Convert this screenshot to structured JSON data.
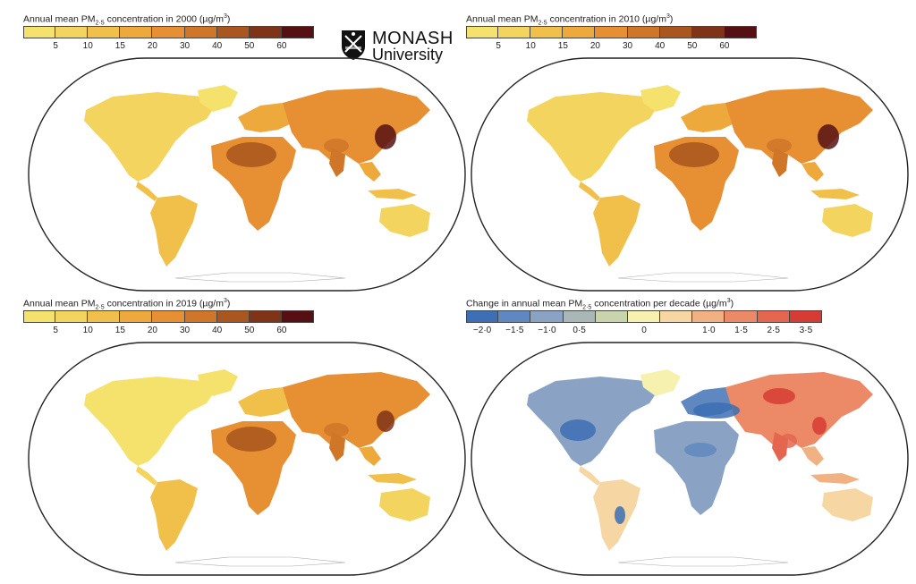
{
  "logo": {
    "name_line1": "MONASH",
    "name_line2": "University"
  },
  "panels": [
    {
      "title_main": "Annual mean PM",
      "title_sub": "2·5",
      "title_rest": " concentration in 2000 (µg/m",
      "title_sup": "3",
      "title_end": ")",
      "year": "2000",
      "legend": [
        "",
        "5",
        "10",
        "15",
        "20",
        "30",
        "40",
        "50",
        "60"
      ],
      "colors": [
        "#f5e26c",
        "#f3d45e",
        "#f1c04b",
        "#eda93c",
        "#e69033",
        "#cf7629",
        "#a9561f",
        "#7f3417",
        "#561014"
      ]
    },
    {
      "title_main": "Annual mean PM",
      "title_sub": "2·5",
      "title_rest": " concentration in 2010 (µg/m",
      "title_sup": "3",
      "title_end": ")",
      "year": "2010",
      "legend": [
        "",
        "5",
        "10",
        "15",
        "20",
        "30",
        "40",
        "50",
        "60"
      ],
      "colors": [
        "#f5e26c",
        "#f3d45e",
        "#f1c04b",
        "#eda93c",
        "#e69033",
        "#cf7629",
        "#a9561f",
        "#7f3417",
        "#561014"
      ]
    },
    {
      "title_main": "Annual mean PM",
      "title_sub": "2·5",
      "title_rest": " concentration in 2019 (µg/m",
      "title_sup": "3",
      "title_end": ")",
      "year": "2019",
      "legend": [
        "",
        "5",
        "10",
        "15",
        "20",
        "30",
        "40",
        "50",
        "60"
      ],
      "colors": [
        "#f5e26c",
        "#f3d45e",
        "#f1c04b",
        "#eda93c",
        "#e69033",
        "#cf7629",
        "#a9561f",
        "#7f3417",
        "#561014"
      ]
    },
    {
      "title_main": "Change in annual mean PM",
      "title_sub": "2·5",
      "title_rest": " concentration per decade (µg/m",
      "title_sup": "3",
      "title_end": ")",
      "year": "",
      "legend": [
        "−2·0",
        "−1·5",
        "−1·0",
        "0·5",
        "",
        "0",
        "",
        "1·0",
        "1·5",
        "2·5",
        "3·5"
      ],
      "colors": [
        "#3c6fb4",
        "#5f88c0",
        "#8aa3c4",
        "#a9b8b6",
        "#c9d4ad",
        "#f7f1b0",
        "#f6d7a3",
        "#f1b283",
        "#ec8a68",
        "#e4664f",
        "#d63c33"
      ]
    }
  ]
}
